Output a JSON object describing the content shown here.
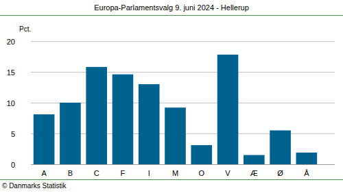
{
  "chart_data": {
    "type": "bar",
    "title": "Europa-Parlamentsvalg 9. juni 2024 - Hellerup",
    "y_label": "Pct.",
    "source": "© Danmarks Statistik",
    "categories": [
      "A",
      "B",
      "C",
      "F",
      "I",
      "M",
      "O",
      "V",
      "Æ",
      "Ø",
      "Å"
    ],
    "values": [
      8.1,
      10.0,
      15.8,
      14.6,
      13.0,
      9.2,
      3.1,
      17.8,
      1.5,
      5.5,
      1.9
    ],
    "color": "#00628f",
    "ylim": [
      0,
      20
    ],
    "yticks": [
      0,
      5,
      10,
      15,
      20
    ],
    "grid": true
  }
}
